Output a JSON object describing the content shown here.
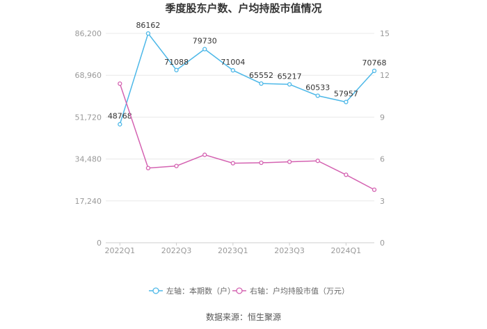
{
  "chart_data": {
    "type": "line",
    "title": "季度股东户数、户均持股市值情况",
    "categories": [
      "2022Q1",
      "2022Q2",
      "2022Q3",
      "2022Q4",
      "2023Q1",
      "2023Q2",
      "2023Q3",
      "2023Q4",
      "2024Q1",
      "2024Q2"
    ],
    "x_tick_labels": [
      "2022Q1",
      "2022Q3",
      "2023Q1",
      "2023Q3",
      "2024Q1"
    ],
    "y_left": {
      "ticks": [
        "0",
        "17,240",
        "34,480",
        "51,720",
        "68,960",
        "86,200"
      ],
      "range": [
        0,
        86200
      ]
    },
    "y_right": {
      "ticks": [
        "0",
        "3",
        "6",
        "9",
        "12",
        "15"
      ],
      "range": [
        0,
        15
      ]
    },
    "series": [
      {
        "name": "左轴：本期数（户）",
        "axis": "left",
        "color": "#4db8e8",
        "values": [
          48768,
          86162,
          71088,
          79730,
          71004,
          65552,
          65217,
          60533,
          57957,
          70768
        ],
        "labels": [
          "48768",
          "86162",
          "71088",
          "79730",
          "71004",
          "65552",
          "65217",
          "60533",
          "57957",
          "70768"
        ]
      },
      {
        "name": "右轴：户均持股市值（万元）",
        "axis": "right",
        "color": "#d462b1",
        "values": [
          11.4,
          5.35,
          5.5,
          6.3,
          5.7,
          5.73,
          5.8,
          5.87,
          4.87,
          3.8
        ]
      }
    ],
    "grid": true,
    "legend_position": "bottom"
  },
  "source": "数据来源：恒生聚源"
}
